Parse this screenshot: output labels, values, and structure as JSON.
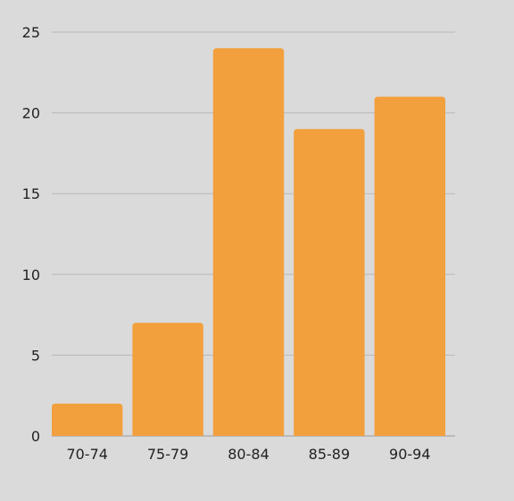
{
  "chart_data": {
    "type": "bar",
    "title": "",
    "xlabel": "",
    "ylabel": "",
    "categories": [
      "70-74",
      "75-79",
      "80-84",
      "85-89",
      "90-94"
    ],
    "values": [
      2,
      7,
      24,
      19,
      21
    ],
    "ylim": [
      0,
      25
    ],
    "yticks": [
      0,
      5,
      10,
      15,
      20,
      25
    ],
    "grid": true,
    "legend": "none",
    "colors": {
      "bar": "#f2a03d",
      "grid": "#b8b8b8",
      "axis": "#999999",
      "background": "#dadada"
    }
  }
}
